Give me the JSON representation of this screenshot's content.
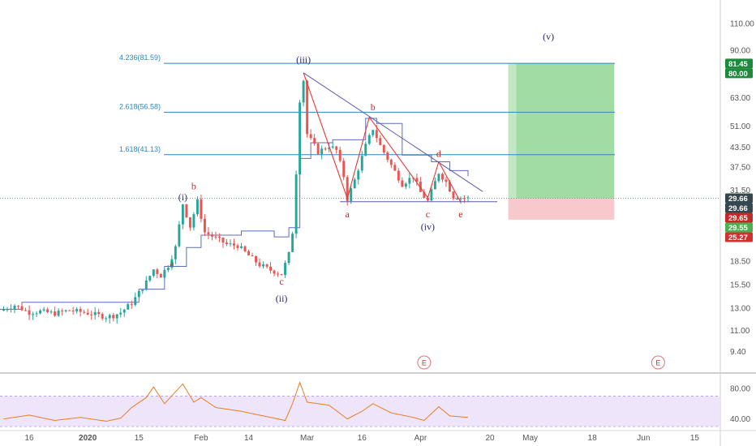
{
  "chart_data": {
    "type": "candlestick",
    "y_scale": "log",
    "ylim": [
      8.5,
      125
    ],
    "xlim": [
      "2019-12-08",
      "2020-06-22"
    ],
    "y_ticks": [
      "110.00",
      "90.00",
      "75.00",
      "63.00",
      "51.00",
      "43.50",
      "37.50",
      "31.50",
      "25.50",
      "18.50",
      "15.50",
      "13.00",
      "11.00",
      "9.40"
    ],
    "x_ticks": [
      {
        "label": "16",
        "date": "2019-12-16",
        "bold": false
      },
      {
        "label": "2020",
        "date": "2020-01-01",
        "bold": true
      },
      {
        "label": "15",
        "date": "2020-01-15",
        "bold": false
      },
      {
        "label": "Feb",
        "date": "2020-02-01",
        "bold": false
      },
      {
        "label": "14",
        "date": "2020-02-14",
        "bold": false
      },
      {
        "label": "Mar",
        "date": "2020-03-01",
        "bold": false
      },
      {
        "label": "16",
        "date": "2020-03-16",
        "bold": false
      },
      {
        "label": "Apr",
        "date": "2020-04-01",
        "bold": false
      },
      {
        "label": "20",
        "date": "2020-04-20",
        "bold": false
      },
      {
        "label": "May",
        "date": "2020-05-01",
        "bold": false
      },
      {
        "label": "18",
        "date": "2020-05-18",
        "bold": false
      },
      {
        "label": "Jun",
        "date": "2020-06-01",
        "bold": false
      },
      {
        "label": "15",
        "date": "2020-06-15",
        "bold": false
      }
    ],
    "price_series": [
      {
        "date": "2019-12-09",
        "close": 12.9
      },
      {
        "date": "2019-12-12",
        "close": 13.3
      },
      {
        "date": "2019-12-16",
        "close": 12.6
      },
      {
        "date": "2019-12-19",
        "close": 12.7
      },
      {
        "date": "2019-12-23",
        "close": 12.5
      },
      {
        "date": "2019-12-27",
        "close": 12.8
      },
      {
        "date": "2019-12-31",
        "close": 12.6
      },
      {
        "date": "2020-01-03",
        "close": 12.4
      },
      {
        "date": "2020-01-06",
        "close": 12.2
      },
      {
        "date": "2020-01-08",
        "close": 12.3
      },
      {
        "date": "2020-01-10",
        "close": 12.6
      },
      {
        "date": "2020-01-13",
        "close": 13.5
      },
      {
        "date": "2020-01-15",
        "close": 14.6
      },
      {
        "date": "2020-01-17",
        "close": 15.8
      },
      {
        "date": "2020-01-19",
        "close": 17.4
      },
      {
        "date": "2020-01-21",
        "close": 16.6
      },
      {
        "date": "2020-01-23",
        "close": 17.9
      },
      {
        "date": "2020-01-25",
        "close": 20.5
      },
      {
        "date": "2020-01-27",
        "close": 28.5
      },
      {
        "date": "2020-01-29",
        "close": 24.0
      },
      {
        "date": "2020-01-31",
        "close": 29.0
      },
      {
        "date": "2020-02-02",
        "close": 23.0
      },
      {
        "date": "2020-02-05",
        "close": 22.0
      },
      {
        "date": "2020-02-08",
        "close": 21.0
      },
      {
        "date": "2020-02-11",
        "close": 20.8
      },
      {
        "date": "2020-02-14",
        "close": 19.3
      },
      {
        "date": "2020-02-17",
        "close": 18.0
      },
      {
        "date": "2020-02-20",
        "close": 17.3
      },
      {
        "date": "2020-02-23",
        "close": 16.8
      },
      {
        "date": "2020-02-25",
        "close": 19.5
      },
      {
        "date": "2020-02-26",
        "close": 23.0
      },
      {
        "date": "2020-02-27",
        "close": 36.0
      },
      {
        "date": "2020-02-28",
        "close": 62.0
      },
      {
        "date": "2020-02-29",
        "close": 72.0
      },
      {
        "date": "2020-03-01",
        "close": 48.0
      },
      {
        "date": "2020-03-04",
        "close": 42.0
      },
      {
        "date": "2020-03-07",
        "close": 44.0
      },
      {
        "date": "2020-03-09",
        "close": 42.5
      },
      {
        "date": "2020-03-11",
        "close": 35.0
      },
      {
        "date": "2020-03-12",
        "close": 29.5
      },
      {
        "date": "2020-03-14",
        "close": 34.0
      },
      {
        "date": "2020-03-17",
        "close": 44.0
      },
      {
        "date": "2020-03-19",
        "close": 50.0
      },
      {
        "date": "2020-03-21",
        "close": 44.0
      },
      {
        "date": "2020-03-24",
        "close": 38.0
      },
      {
        "date": "2020-03-27",
        "close": 33.0
      },
      {
        "date": "2020-03-30",
        "close": 35.0
      },
      {
        "date": "2020-04-01",
        "close": 31.0
      },
      {
        "date": "2020-04-03",
        "close": 29.0
      },
      {
        "date": "2020-04-06",
        "close": 36.0
      },
      {
        "date": "2020-04-08",
        "close": 33.5
      },
      {
        "date": "2020-04-10",
        "close": 30.0
      },
      {
        "date": "2020-04-12",
        "close": 29.8
      },
      {
        "date": "2020-04-14",
        "close": 29.66
      }
    ],
    "indicator_line": [
      {
        "date": "2019-12-08",
        "value": 12.9
      },
      {
        "date": "2019-12-14",
        "value": 13.6
      },
      {
        "date": "2020-01-13",
        "value": 13.6
      },
      {
        "date": "2020-01-15",
        "value": 15.0
      },
      {
        "date": "2020-01-22",
        "value": 17.8
      },
      {
        "date": "2020-01-28",
        "value": 20.5
      },
      {
        "date": "2020-02-01",
        "value": 22.5
      },
      {
        "date": "2020-02-12",
        "value": 23.2
      },
      {
        "date": "2020-02-21",
        "value": 22.2
      },
      {
        "date": "2020-02-25",
        "value": 23.8
      },
      {
        "date": "2020-02-28",
        "value": 40.0
      },
      {
        "date": "2020-03-02",
        "value": 45.0
      },
      {
        "date": "2020-03-08",
        "value": 46.0
      },
      {
        "date": "2020-03-14",
        "value": 46.0
      },
      {
        "date": "2020-03-17",
        "value": 54.0
      },
      {
        "date": "2020-03-20",
        "value": 52.0
      },
      {
        "date": "2020-03-27",
        "value": 41.0
      },
      {
        "date": "2020-04-04",
        "value": 39.0
      },
      {
        "date": "2020-04-09",
        "value": 36.5
      },
      {
        "date": "2020-04-14",
        "value": 35.0
      }
    ],
    "fib_levels": [
      {
        "label": "4.236(81.59)",
        "price": 81.59
      },
      {
        "label": "2.618(56.58)",
        "price": 56.58
      },
      {
        "label": "1.618(41.13)",
        "price": 41.13
      }
    ],
    "wave_labels": [
      {
        "text": "(i)",
        "date": "2020-01-27",
        "price": 28.5,
        "color": "#2a2a7a",
        "pos": "above"
      },
      {
        "text": "a",
        "date": "2020-01-24",
        "price": 19.0,
        "color": "#c62828",
        "pos": "below"
      },
      {
        "text": "b",
        "date": "2020-01-30",
        "price": 31.0,
        "color": "#c62828",
        "pos": "above"
      },
      {
        "text": "c",
        "date": "2020-02-23",
        "price": 16.6,
        "color": "#c62828",
        "pos": "below"
      },
      {
        "text": "(ii)",
        "date": "2020-02-23",
        "price": 14.6,
        "color": "#2a2a7a",
        "pos": "below"
      },
      {
        "text": "(iii)",
        "date": "2020-02-29",
        "price": 80.0,
        "color": "#2a2a7a",
        "pos": "above"
      },
      {
        "text": "a",
        "date": "2020-03-12",
        "price": 27.5,
        "color": "#c62828",
        "pos": "below"
      },
      {
        "text": "b",
        "date": "2020-03-19",
        "price": 56.0,
        "color": "#c62828",
        "pos": "above"
      },
      {
        "text": "c",
        "date": "2020-04-03",
        "price": 27.5,
        "color": "#c62828",
        "pos": "below"
      },
      {
        "text": "(iv)",
        "date": "2020-04-03",
        "price": 25.0,
        "color": "#2a2a7a",
        "pos": "below"
      },
      {
        "text": "d",
        "date": "2020-04-06",
        "price": 39.5,
        "color": "#c62828",
        "pos": "above"
      },
      {
        "text": "e",
        "date": "2020-04-12",
        "price": 27.5,
        "color": "#c62828",
        "pos": "below"
      },
      {
        "text": "(v)",
        "date": "2020-05-06",
        "price": 95.0,
        "color": "#2a2a7a",
        "pos": "above"
      }
    ],
    "price_tags": [
      {
        "text": "81.45",
        "price": 81.45,
        "color": "#1b8a3a"
      },
      {
        "text": "80.00",
        "price": 80.0,
        "color": "#1b8a3a"
      },
      {
        "text": "29.66",
        "price": 29.66,
        "color": "#37474f"
      },
      {
        "text": "29.66",
        "price": 28.6,
        "color": "#37474f"
      },
      {
        "text": "29.65",
        "price": 27.6,
        "color": "#c62828"
      },
      {
        "text": "29.55",
        "price": 26.1,
        "color": "#4caf50"
      },
      {
        "text": "25.27",
        "price": 25.27,
        "color": "#d32f2f"
      }
    ],
    "position": {
      "start": "2020-04-25",
      "end": "2020-05-24",
      "entry": 29.66,
      "target": 81.45,
      "stop": 25.27
    },
    "events": [
      {
        "label": "E",
        "date": "2020-04-02"
      },
      {
        "label": "E",
        "date": "2020-06-05"
      }
    ],
    "oscillator": {
      "ylim": [
        30,
        95
      ],
      "ticks": [
        "80.00",
        "40.00"
      ],
      "band": [
        70,
        30
      ],
      "values": [
        {
          "date": "2019-12-09",
          "value": 40
        },
        {
          "date": "2019-12-16",
          "value": 45
        },
        {
          "date": "2019-12-23",
          "value": 38
        },
        {
          "date": "2019-12-30",
          "value": 42
        },
        {
          "date": "2020-01-06",
          "value": 37
        },
        {
          "date": "2020-01-10",
          "value": 41
        },
        {
          "date": "2020-01-13",
          "value": 55
        },
        {
          "date": "2020-01-17",
          "value": 68
        },
        {
          "date": "2020-01-19",
          "value": 82
        },
        {
          "date": "2020-01-22",
          "value": 60
        },
        {
          "date": "2020-01-27",
          "value": 86
        },
        {
          "date": "2020-01-30",
          "value": 62
        },
        {
          "date": "2020-02-01",
          "value": 68
        },
        {
          "date": "2020-02-05",
          "value": 55
        },
        {
          "date": "2020-02-12",
          "value": 50
        },
        {
          "date": "2020-02-18",
          "value": 44
        },
        {
          "date": "2020-02-24",
          "value": 38
        },
        {
          "date": "2020-02-26",
          "value": 60
        },
        {
          "date": "2020-02-28",
          "value": 88
        },
        {
          "date": "2020-03-01",
          "value": 62
        },
        {
          "date": "2020-03-07",
          "value": 58
        },
        {
          "date": "2020-03-12",
          "value": 40
        },
        {
          "date": "2020-03-16",
          "value": 50
        },
        {
          "date": "2020-03-19",
          "value": 60
        },
        {
          "date": "2020-03-24",
          "value": 48
        },
        {
          "date": "2020-03-30",
          "value": 42
        },
        {
          "date": "2020-04-02",
          "value": 38
        },
        {
          "date": "2020-04-06",
          "value": 56
        },
        {
          "date": "2020-04-09",
          "value": 44
        },
        {
          "date": "2020-04-14",
          "value": 42
        }
      ]
    }
  }
}
